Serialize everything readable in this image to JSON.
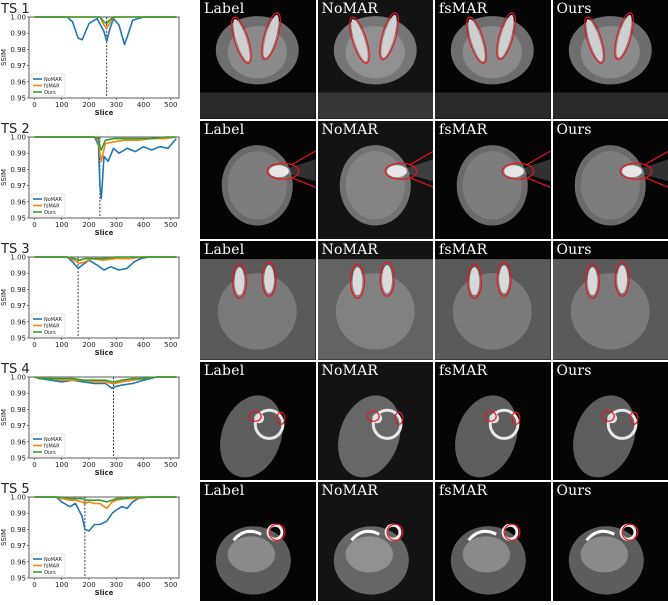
{
  "panel_labels": [
    "Label",
    "NoMAR",
    "fsMAR",
    "Ours"
  ],
  "colors": {
    "NoMAR": "#1f77b4",
    "fsMAR": "#ff7f0e",
    "Ours": "#2ca02c",
    "annotation": "#e8161b"
  },
  "chart_data": [
    {
      "type": "line",
      "title": "TS 1",
      "xlabel": "Slice",
      "ylabel": "SSIM",
      "xlim": [
        -20,
        530
      ],
      "ylim": [
        0.95,
        1.0
      ],
      "xticks": [
        "0",
        "100",
        "200",
        "300",
        "400",
        "500"
      ],
      "yticks": [
        "0.95",
        "0.96",
        "0.97",
        "0.98",
        "0.99",
        "1.00"
      ],
      "legend": "bottom-left",
      "vline": 265,
      "series": [
        {
          "name": "NoMAR",
          "x": [
            0,
            120,
            140,
            160,
            175,
            200,
            230,
            255,
            265,
            275,
            290,
            310,
            330,
            345,
            360,
            400,
            520
          ],
          "y": [
            1.0,
            1.0,
            0.997,
            0.987,
            0.986,
            0.996,
            0.999,
            0.991,
            0.985,
            0.992,
            0.999,
            0.995,
            0.983,
            0.99,
            0.998,
            1.0,
            1.0
          ]
        },
        {
          "name": "fsMAR",
          "x": [
            0,
            240,
            255,
            265,
            275,
            290,
            520
          ],
          "y": [
            1.0,
            1.0,
            0.995,
            0.993,
            0.996,
            1.0,
            1.0
          ]
        },
        {
          "name": "Ours",
          "x": [
            0,
            240,
            255,
            265,
            275,
            290,
            520
          ],
          "y": [
            1.0,
            1.0,
            0.997,
            0.996,
            0.998,
            1.0,
            1.0
          ]
        }
      ]
    },
    {
      "type": "line",
      "title": "TS 2",
      "xlabel": "Slice",
      "ylabel": "SSIM",
      "xlim": [
        -20,
        530
      ],
      "ylim": [
        0.95,
        1.0
      ],
      "xticks": [
        "0",
        "100",
        "200",
        "300",
        "400",
        "500"
      ],
      "yticks": [
        "0.95",
        "0.96",
        "0.97",
        "0.98",
        "0.99",
        "1.00"
      ],
      "legend": "bottom-left",
      "vline": 240,
      "series": [
        {
          "name": "NoMAR",
          "x": [
            0,
            220,
            235,
            240,
            245,
            255,
            270,
            290,
            310,
            340,
            370,
            400,
            430,
            460,
            490,
            520
          ],
          "y": [
            1.0,
            1.0,
            0.995,
            0.97,
            0.962,
            0.988,
            0.985,
            0.993,
            0.99,
            0.993,
            0.991,
            0.994,
            0.992,
            0.994,
            0.993,
            0.999
          ]
        },
        {
          "name": "fsMAR",
          "x": [
            0,
            220,
            235,
            240,
            245,
            260,
            290,
            330,
            380,
            430,
            480,
            520
          ],
          "y": [
            1.0,
            1.0,
            0.998,
            0.99,
            0.985,
            0.996,
            0.997,
            0.998,
            0.998,
            0.999,
            0.999,
            1.0
          ]
        },
        {
          "name": "Ours",
          "x": [
            0,
            220,
            235,
            240,
            245,
            260,
            290,
            330,
            380,
            430,
            480,
            520
          ],
          "y": [
            1.0,
            1.0,
            0.999,
            0.994,
            0.992,
            0.998,
            0.999,
            0.999,
            0.999,
            0.999,
            1.0,
            1.0
          ]
        }
      ]
    },
    {
      "type": "line",
      "title": "TS 3",
      "xlabel": "Slice",
      "ylabel": "SSIM",
      "xlim": [
        -20,
        530
      ],
      "ylim": [
        0.95,
        1.0
      ],
      "xticks": [
        "0",
        "100",
        "200",
        "300",
        "400",
        "500"
      ],
      "yticks": [
        "0.95",
        "0.96",
        "0.97",
        "0.98",
        "0.99",
        "1.00"
      ],
      "legend": "bottom-left",
      "vline": 160,
      "series": [
        {
          "name": "NoMAR",
          "x": [
            0,
            120,
            140,
            160,
            175,
            200,
            230,
            255,
            280,
            310,
            340,
            365,
            390,
            420,
            520
          ],
          "y": [
            1.0,
            1.0,
            0.997,
            0.993,
            0.995,
            0.998,
            0.995,
            0.992,
            0.994,
            0.992,
            0.993,
            0.997,
            0.999,
            1.0,
            1.0
          ]
        },
        {
          "name": "fsMAR",
          "x": [
            0,
            120,
            145,
            165,
            185,
            210,
            250,
            300,
            350,
            400,
            520
          ],
          "y": [
            1.0,
            1.0,
            0.998,
            0.996,
            0.997,
            0.999,
            0.998,
            0.999,
            0.999,
            1.0,
            1.0
          ]
        },
        {
          "name": "Ours",
          "x": [
            0,
            120,
            145,
            165,
            185,
            210,
            250,
            300,
            350,
            400,
            520
          ],
          "y": [
            1.0,
            1.0,
            0.999,
            0.998,
            0.999,
            0.999,
            0.999,
            1.0,
            1.0,
            1.0,
            1.0
          ]
        }
      ]
    },
    {
      "type": "line",
      "title": "TS 4",
      "xlabel": "Slice",
      "ylabel": "SSIM",
      "xlim": [
        -20,
        530
      ],
      "ylim": [
        0.95,
        1.0
      ],
      "xticks": [
        "0",
        "100",
        "200",
        "300",
        "400",
        "500"
      ],
      "yticks": [
        "0.95",
        "0.96",
        "0.97",
        "0.98",
        "0.99",
        "1.00"
      ],
      "legend": "bottom-left",
      "vline": 290,
      "series": [
        {
          "name": "NoMAR",
          "x": [
            0,
            20,
            60,
            100,
            140,
            180,
            220,
            260,
            285,
            295,
            320,
            360,
            400,
            450,
            520
          ],
          "y": [
            1.0,
            0.999,
            0.998,
            0.997,
            0.998,
            0.997,
            0.996,
            0.996,
            0.993,
            0.994,
            0.995,
            0.996,
            0.998,
            1.0,
            1.0
          ]
        },
        {
          "name": "fsMAR",
          "x": [
            0,
            20,
            60,
            100,
            140,
            180,
            220,
            260,
            285,
            295,
            320,
            360,
            400,
            450,
            520
          ],
          "y": [
            1.0,
            0.999,
            0.999,
            0.998,
            0.998,
            0.998,
            0.997,
            0.997,
            0.996,
            0.996,
            0.997,
            0.998,
            0.999,
            1.0,
            1.0
          ]
        },
        {
          "name": "Ours",
          "x": [
            0,
            20,
            60,
            100,
            140,
            180,
            220,
            260,
            285,
            295,
            320,
            360,
            400,
            450,
            520
          ],
          "y": [
            1.0,
            0.999,
            0.999,
            0.999,
            0.999,
            0.998,
            0.998,
            0.998,
            0.997,
            0.997,
            0.998,
            0.999,
            0.999,
            1.0,
            1.0
          ]
        }
      ]
    },
    {
      "type": "line",
      "title": "TS 5",
      "xlabel": "Slice",
      "ylabel": "SSIM",
      "xlim": [
        -20,
        530
      ],
      "ylim": [
        0.95,
        1.0
      ],
      "xticks": [
        "0",
        "100",
        "200",
        "300",
        "400",
        "500"
      ],
      "yticks": [
        "0.95",
        "0.96",
        "0.97",
        "0.98",
        "0.99",
        "1.00"
      ],
      "legend": "bottom-left",
      "vline": 185,
      "series": [
        {
          "name": "NoMAR",
          "x": [
            0,
            80,
            100,
            130,
            150,
            175,
            185,
            200,
            220,
            240,
            265,
            285,
            300,
            320,
            340,
            360,
            380,
            420,
            520
          ],
          "y": [
            1.0,
            1.0,
            0.997,
            0.994,
            0.996,
            0.988,
            0.98,
            0.979,
            0.983,
            0.983,
            0.985,
            0.99,
            0.992,
            0.994,
            0.993,
            0.997,
            0.999,
            1.0,
            1.0
          ]
        },
        {
          "name": "fsMAR",
          "x": [
            0,
            80,
            100,
            130,
            150,
            175,
            185,
            200,
            220,
            240,
            265,
            285,
            300,
            330,
            360,
            420,
            520
          ],
          "y": [
            1.0,
            1.0,
            0.999,
            0.998,
            0.998,
            0.997,
            0.996,
            0.997,
            0.996,
            0.996,
            0.993,
            0.997,
            0.998,
            0.999,
            0.999,
            1.0,
            1.0
          ]
        },
        {
          "name": "Ours",
          "x": [
            0,
            80,
            100,
            130,
            150,
            175,
            185,
            200,
            220,
            240,
            265,
            285,
            300,
            330,
            360,
            420,
            520
          ],
          "y": [
            1.0,
            1.0,
            1.0,
            0.999,
            0.999,
            0.999,
            0.998,
            0.998,
            0.998,
            0.998,
            0.997,
            0.998,
            0.999,
            0.999,
            1.0,
            1.0,
            1.0
          ]
        }
      ]
    }
  ]
}
